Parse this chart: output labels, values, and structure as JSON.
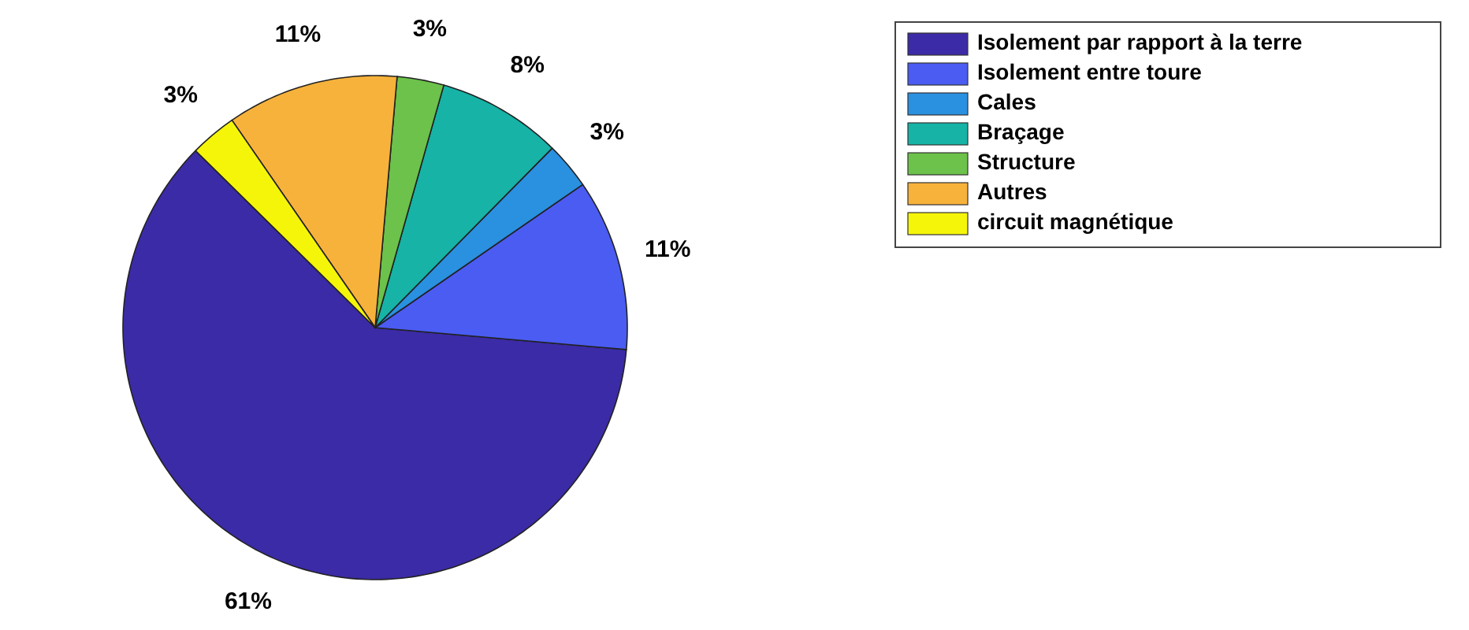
{
  "chart_data": {
    "type": "pie",
    "categories": [
      "Isolement par rapport à la terre",
      "Isolement entre toure",
      "Cales",
      "Braçage",
      "Structure",
      "Autres",
      "circuit magnétique"
    ],
    "values": [
      61,
      11,
      3,
      8,
      3,
      11,
      3
    ],
    "value_labels": [
      "61%",
      "11%",
      "3%",
      "8%",
      "3%",
      "11%",
      "3%"
    ],
    "colors": [
      "#3b2ba6",
      "#4a5cf2",
      "#2a90e0",
      "#16b3a6",
      "#6cc24a",
      "#f7b23b",
      "#f5f50a"
    ],
    "legend": "top right"
  }
}
